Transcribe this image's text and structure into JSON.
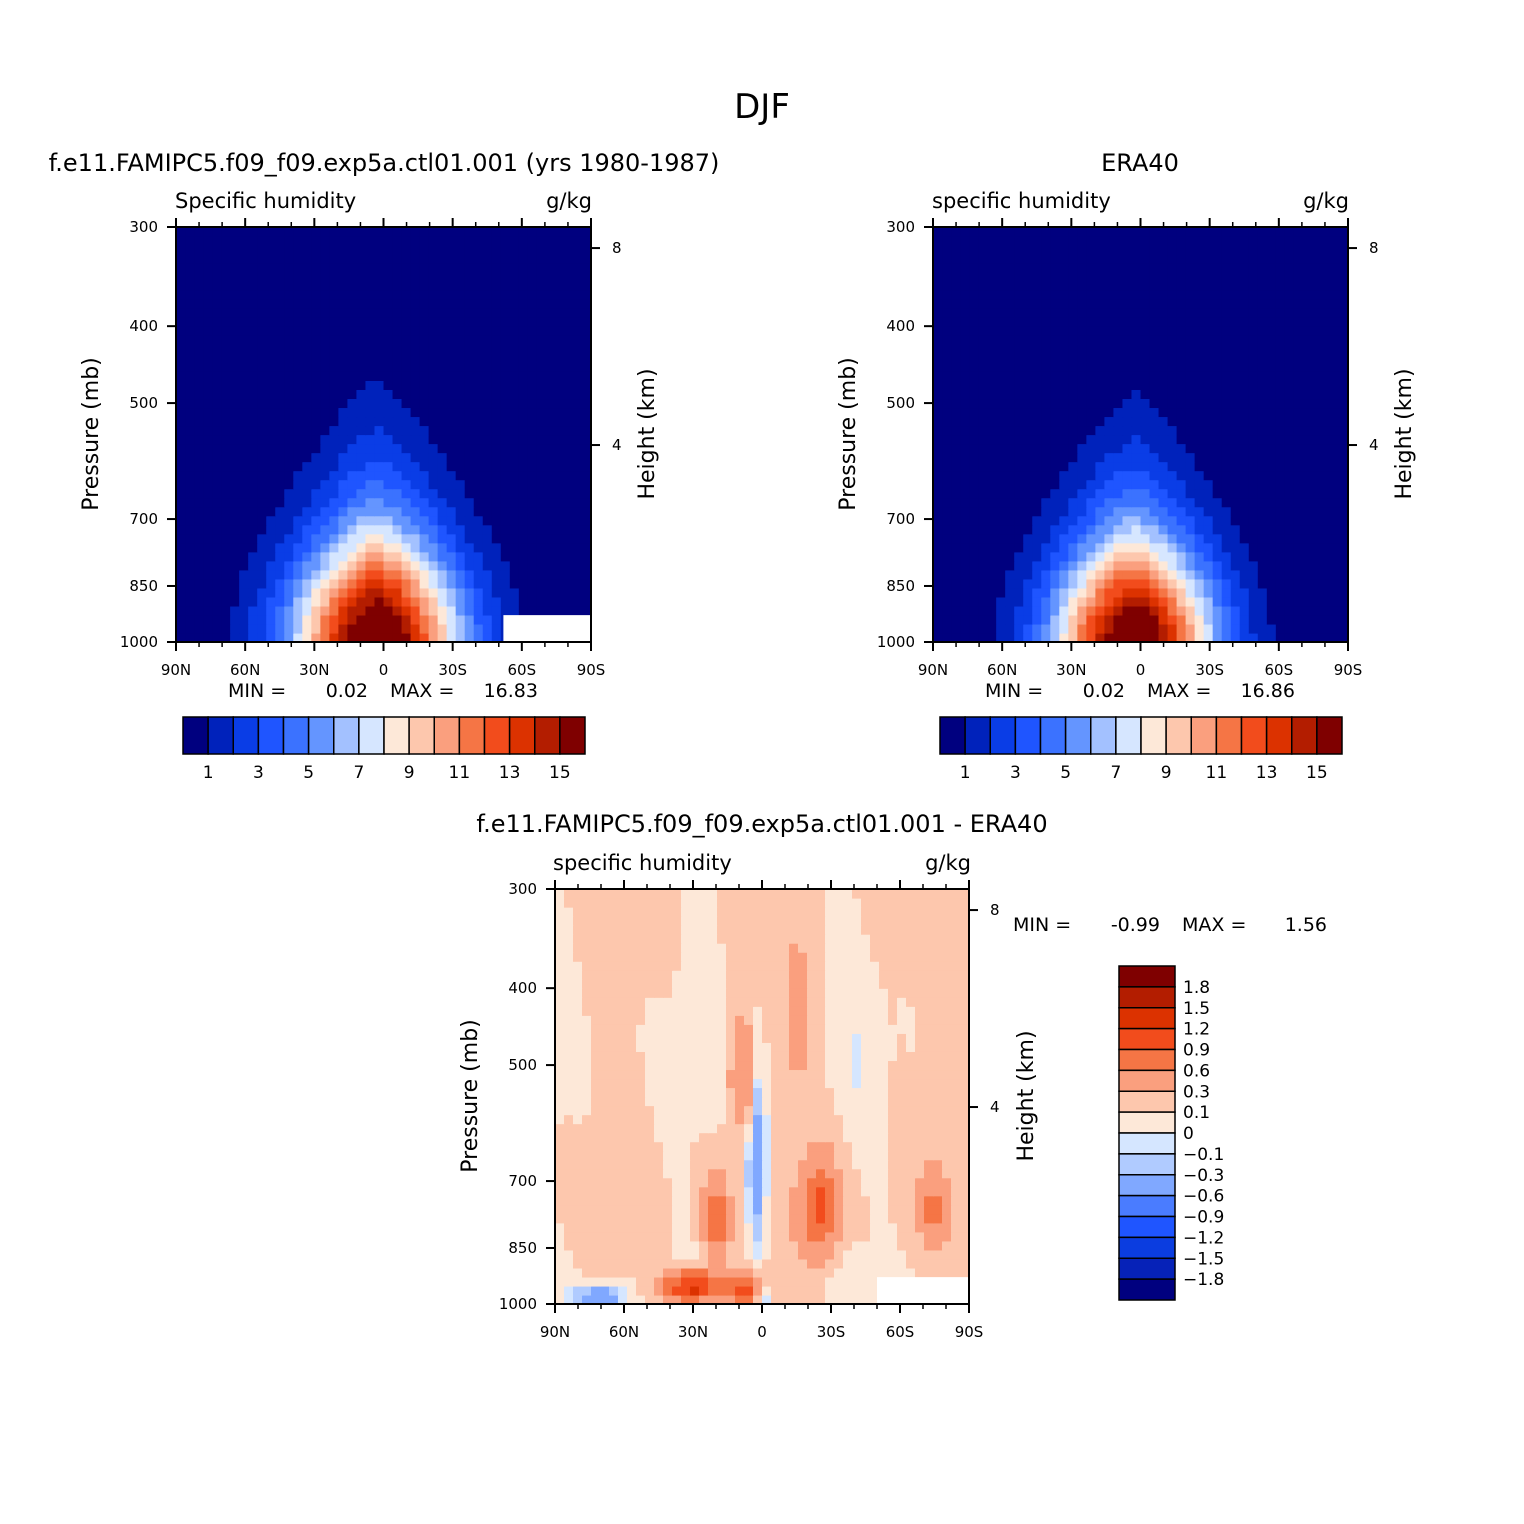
{
  "figure_title": "DJF",
  "colors": {
    "abs_palette": [
      "#00007f",
      "#0022bb",
      "#0a3de6",
      "#1f55ff",
      "#3b72ff",
      "#6495ff",
      "#a3c1ff",
      "#d6e6ff",
      "#fde8d8",
      "#fdc7ad",
      "#fa9f7e",
      "#f57545",
      "#f24c1c",
      "#dc3200",
      "#b31d00",
      "#7f0000"
    ],
    "diff_palette": [
      "#00007f",
      "#0622b8",
      "#0b3de0",
      "#1f55ff",
      "#4a7cff",
      "#80a8ff",
      "#b0cbff",
      "#d5e6ff",
      "#fde8d8",
      "#fdc7ad",
      "#fa9f7e",
      "#f57545",
      "#f24c1c",
      "#dc3200",
      "#b31d00",
      "#7f0000"
    ]
  },
  "chart_data": [
    {
      "type": "contour",
      "panel_title": "f.e11.FAMIPC5.f09_f09.exp5a.ctl01.001 (yrs 1980-1987)",
      "variable_label": "Specific humidity",
      "units": "g/kg",
      "ylabel": "Pressure (mb)",
      "right_ylabel": "Height (km)",
      "xlim": [
        90,
        -90
      ],
      "ylim": [
        1000,
        300
      ],
      "x_ticks": [
        90,
        60,
        30,
        0,
        -30,
        -60,
        -90
      ],
      "x_tick_labels": [
        "90N",
        "60N",
        "30N",
        "0",
        "30S",
        "60S",
        "90S"
      ],
      "y_ticks": [
        300,
        400,
        500,
        700,
        850,
        1000
      ],
      "y_tick_labels": [
        "300",
        "400",
        "500",
        "700",
        "850",
        "1000"
      ],
      "right_ticks": [
        8,
        4
      ],
      "right_tick_labels": [
        "8",
        "4"
      ],
      "min_label": "MIN =",
      "min_value": "0.02",
      "max_label": "MAX =",
      "max_value": "16.83",
      "field": {
        "x0": 3,
        "sigx": 38,
        "p0": 1020,
        "dp": 330,
        "peak": 16.83,
        "noise": 0.45,
        "missing_region": {
          "lat": [
            -52,
            -90
          ],
          "p": [
            925,
            1000
          ]
        }
      },
      "colorbar": {
        "orientation": "horizontal",
        "levels": [
          1,
          2,
          3,
          4,
          5,
          6,
          7,
          8,
          9,
          10,
          11,
          12,
          13,
          14,
          15
        ],
        "labels": [
          "1",
          "3",
          "5",
          "7",
          "9",
          "11",
          "13",
          "15"
        ]
      }
    },
    {
      "type": "contour",
      "panel_title": "ERA40",
      "variable_label": "specific humidity",
      "units": "g/kg",
      "ylabel": "Pressure (mb)",
      "right_ylabel": "Height (km)",
      "xlim": [
        90,
        -90
      ],
      "ylim": [
        1000,
        300
      ],
      "x_ticks": [
        90,
        60,
        30,
        0,
        -30,
        -60,
        -90
      ],
      "x_tick_labels": [
        "90N",
        "60N",
        "30N",
        "0",
        "30S",
        "60S",
        "90S"
      ],
      "y_ticks": [
        300,
        400,
        500,
        700,
        850,
        1000
      ],
      "y_tick_labels": [
        "300",
        "400",
        "500",
        "700",
        "850",
        "1000"
      ],
      "right_ticks": [
        8,
        4
      ],
      "right_tick_labels": [
        "8",
        "4"
      ],
      "min_label": "MIN =",
      "min_value": "0.02",
      "max_label": "MAX =",
      "max_value": "16.86",
      "field": {
        "x0": 3,
        "sigx": 36,
        "p0": 1020,
        "dp": 320,
        "peak": 16.86,
        "noise": 0.25
      },
      "colorbar": {
        "orientation": "horizontal",
        "levels": [
          1,
          2,
          3,
          4,
          5,
          6,
          7,
          8,
          9,
          10,
          11,
          12,
          13,
          14,
          15
        ],
        "labels": [
          "1",
          "3",
          "5",
          "7",
          "9",
          "11",
          "13",
          "15"
        ]
      }
    },
    {
      "type": "contour",
      "panel_title": "f.e11.FAMIPC5.f09_f09.exp5a.ctl01.001 - ERA40",
      "variable_label": "specific humidity",
      "units": "g/kg",
      "ylabel": "Pressure (mb)",
      "right_ylabel": "Height (km)",
      "xlim": [
        90,
        -90
      ],
      "ylim": [
        1000,
        300
      ],
      "x_ticks": [
        90,
        60,
        30,
        0,
        -30,
        -60,
        -90
      ],
      "x_tick_labels": [
        "90N",
        "60N",
        "30N",
        "0",
        "30S",
        "60S",
        "90S"
      ],
      "y_ticks": [
        300,
        400,
        500,
        700,
        850,
        1000
      ],
      "y_tick_labels": [
        "300",
        "400",
        "500",
        "700",
        "850",
        "1000"
      ],
      "right_ticks": [
        8,
        4
      ],
      "right_tick_labels": [
        "8",
        "4"
      ],
      "min_label": "MIN =",
      "min_value": "-0.99",
      "max_label": "MAX =",
      "max_value": "1.56",
      "field_features": [
        {
          "lat": 30,
          "p": 950,
          "amp": 1.3,
          "slat": 12,
          "sp": 45
        },
        {
          "lat": 20,
          "p": 780,
          "amp": 0.7,
          "slat": 6,
          "sp": 90
        },
        {
          "lat": -25,
          "p": 760,
          "amp": 0.9,
          "slat": 8,
          "sp": 110
        },
        {
          "lat": 2,
          "p": 650,
          "amp": -0.75,
          "slat": 4,
          "sp": 170
        },
        {
          "lat": 0,
          "p": 970,
          "amp": -0.9,
          "slat": 5,
          "sp": 35
        },
        {
          "lat": 70,
          "p": 975,
          "amp": -0.8,
          "slat": 9,
          "sp": 30
        },
        {
          "lat": 8,
          "p": 520,
          "amp": 0.5,
          "slat": 7,
          "sp": 90
        },
        {
          "lat": -15,
          "p": 450,
          "amp": 0.3,
          "slat": 6,
          "sp": 100
        },
        {
          "lat": -75,
          "p": 760,
          "amp": 0.5,
          "slat": 6,
          "sp": 80
        },
        {
          "lat": 5,
          "p": 960,
          "amp": 1.2,
          "slat": 9,
          "sp": 40
        }
      ],
      "missing_region": {
        "lat": [
          -50,
          -90
        ],
        "p": [
          925,
          1000
        ]
      },
      "colorbar": {
        "orientation": "vertical",
        "levels": [
          -1.8,
          -1.5,
          -1.2,
          -0.9,
          -0.6,
          -0.3,
          -0.1,
          0,
          0.1,
          0.3,
          0.6,
          0.9,
          1.2,
          1.5,
          1.8
        ],
        "labels": [
          "1.8",
          "1.5",
          "1.2",
          "0.9",
          "0.6",
          "0.3",
          "0.1",
          "0",
          "−0.1",
          "−0.3",
          "−0.6",
          "−0.9",
          "−1.2",
          "−1.5",
          "−1.8"
        ]
      }
    }
  ]
}
